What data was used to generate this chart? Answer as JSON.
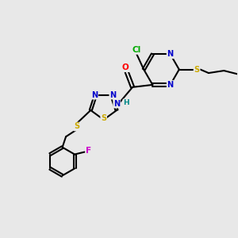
{
  "bg_color": "#e8e8e8",
  "atom_colors": {
    "C": "#000000",
    "N": "#0000cc",
    "O": "#ff0000",
    "S": "#ccaa00",
    "Cl": "#00aa00",
    "F": "#cc00cc",
    "H": "#008888"
  },
  "bond_color": "#000000",
  "figsize": [
    3.0,
    3.0
  ],
  "dpi": 100
}
